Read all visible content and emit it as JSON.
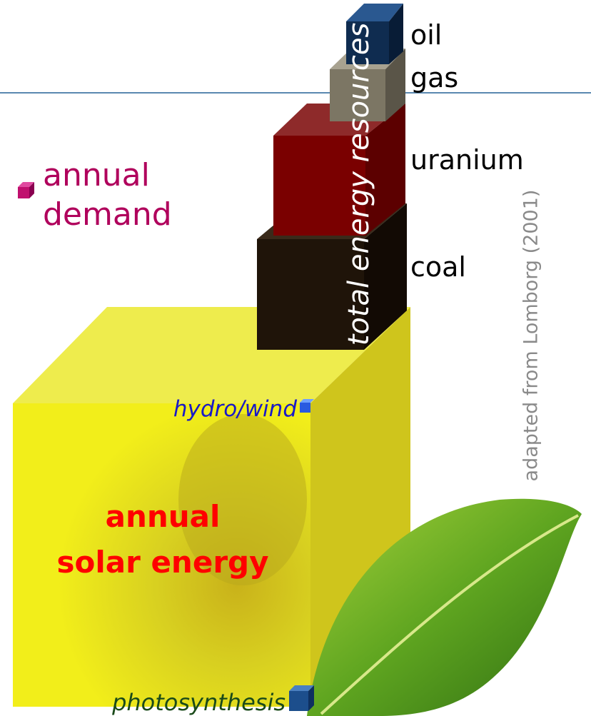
{
  "stack_labels": [
    "oil",
    "gas",
    "uranium",
    "coal"
  ],
  "stack_title": "total energy resources",
  "demand_label": [
    "annual",
    "demand"
  ],
  "source": "adapted from Lomborg (2001)",
  "hydro_label": "hydro/wind",
  "solar_label": [
    "annual",
    "solar energy"
  ],
  "photo_label": "photosynthesis"
}
